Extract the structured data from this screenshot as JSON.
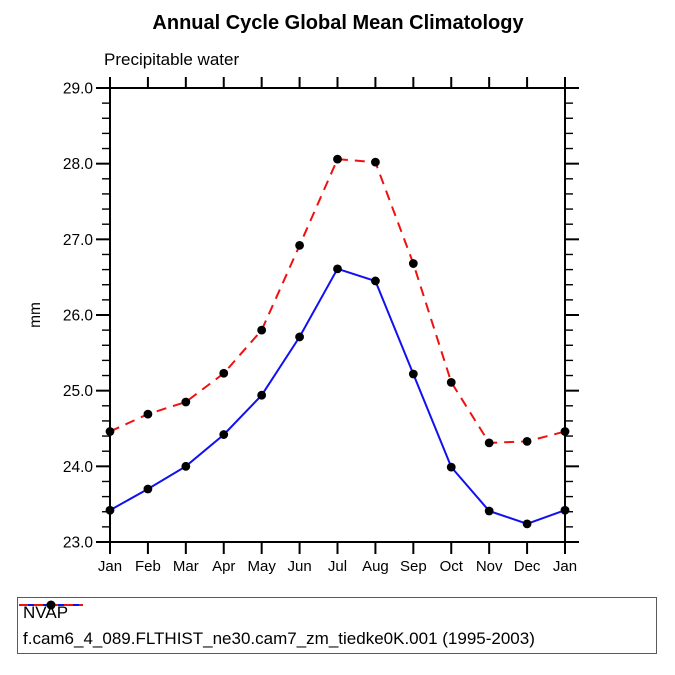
{
  "chart_data": {
    "type": "line",
    "title": "Annual Cycle Global Mean Climatology",
    "subtitle": "Precipitable water",
    "ylabel": "mm",
    "categories": [
      "Jan",
      "Feb",
      "Mar",
      "Apr",
      "May",
      "Jun",
      "Jul",
      "Aug",
      "Sep",
      "Oct",
      "Nov",
      "Dec",
      "Jan"
    ],
    "series": [
      {
        "name": "NVAP",
        "color": "#1010f0",
        "line_style": "solid",
        "marker": "filled-circle",
        "marker_color": "#000000",
        "values": [
          23.42,
          23.7,
          24.0,
          24.42,
          24.94,
          25.71,
          26.61,
          26.45,
          25.22,
          23.99,
          23.41,
          23.24,
          23.42
        ]
      },
      {
        "name": "f.cam6_4_089.FLTHIST_ne30.cam7_zm_tiedke0K.001 (1995-2003)",
        "color": "#f01010",
        "line_style": "dashed",
        "marker": "filled-circle",
        "marker_color": "#000000",
        "values": [
          24.46,
          24.69,
          24.85,
          25.23,
          25.8,
          26.92,
          28.06,
          28.02,
          26.68,
          25.11,
          24.31,
          24.33,
          24.46
        ]
      }
    ],
    "ylim": [
      23.0,
      29.0
    ],
    "ytick_labels": [
      "23.0",
      "24.0",
      "25.0",
      "26.0",
      "27.0",
      "28.0",
      "29.0"
    ],
    "ytick_minor_step": 0.2,
    "grid": false,
    "axis_color": "#000000",
    "legend_position": "bottom-left-box"
  }
}
